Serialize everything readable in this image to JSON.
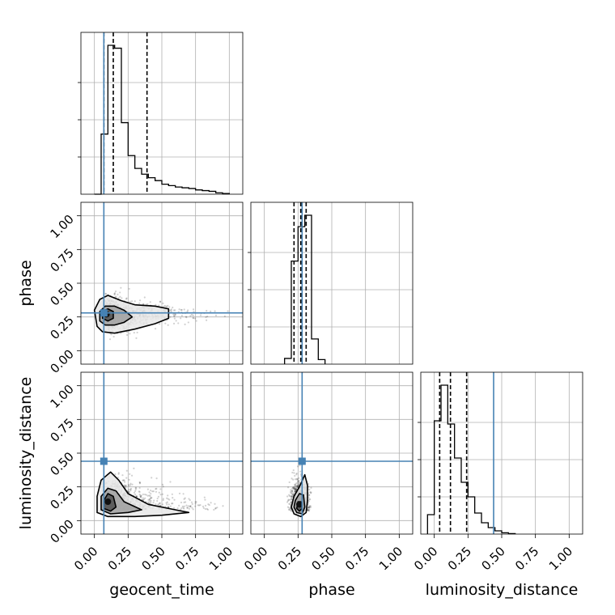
{
  "colors": {
    "truth": "#4682b4",
    "hist": "#000000",
    "points": "#000000",
    "grid": "#b0b0b0"
  },
  "chart_data": {
    "type": "corner",
    "parameters": [
      "geocent_time",
      "phase",
      "luminosity_distance"
    ],
    "axis_labels": {
      "x": [
        "geocent_time",
        "phase",
        "luminosity_distance"
      ],
      "y": [
        "",
        "phase",
        "luminosity_distance"
      ]
    },
    "range": [
      -0.1,
      1.1
    ],
    "ticks": [
      0.0,
      0.25,
      0.5,
      0.75,
      1.0
    ],
    "tick_labels": [
      "0.00",
      "0.25",
      "0.50",
      "0.75",
      "1.00"
    ],
    "grid": true,
    "truths": {
      "geocent_time": 0.07,
      "phase": 0.28,
      "luminosity_distance": 0.44
    },
    "histograms": [
      {
        "parameter": "geocent_time",
        "bin_edges": [
          0.0,
          0.05,
          0.1,
          0.15,
          0.2,
          0.25,
          0.3,
          0.35,
          0.4,
          0.45,
          0.5,
          0.55,
          0.6,
          0.65,
          0.7,
          0.75,
          0.8,
          0.85,
          0.9,
          0.95,
          1.0
        ],
        "counts": [
          0,
          420,
          1040,
          1020,
          500,
          270,
          180,
          140,
          115,
          95,
          70,
          60,
          50,
          45,
          40,
          30,
          25,
          20,
          10,
          5
        ],
        "quantiles": [
          0.07,
          0.14,
          0.39
        ]
      },
      {
        "parameter": "phase",
        "bin_edges": [
          0.15,
          0.2,
          0.25,
          0.3,
          0.35,
          0.4,
          0.45
        ],
        "counts": [
          50,
          900,
          1200,
          1300,
          220,
          40
        ],
        "quantiles": [
          0.22,
          0.27,
          0.31
        ]
      },
      {
        "parameter": "luminosity_distance",
        "bin_edges": [
          -0.05,
          0.0,
          0.05,
          0.1,
          0.15,
          0.2,
          0.25,
          0.3,
          0.35,
          0.4,
          0.45,
          0.5,
          0.55,
          0.6
        ],
        "counts": [
          120,
          700,
          920,
          680,
          470,
          320,
          230,
          130,
          70,
          40,
          20,
          8,
          3
        ],
        "quantiles": [
          0.04,
          0.12,
          0.24
        ]
      }
    ],
    "pairs": [
      {
        "x": "geocent_time",
        "y": "phase",
        "peak": [
          0.09,
          0.27
        ],
        "contours": [
          [
            [
              0.02,
              0.18
            ],
            [
              0.06,
              0.14
            ],
            [
              0.15,
              0.13
            ],
            [
              0.3,
              0.16
            ],
            [
              0.45,
              0.2
            ],
            [
              0.55,
              0.24
            ],
            [
              0.55,
              0.31
            ],
            [
              0.45,
              0.33
            ],
            [
              0.3,
              0.34
            ],
            [
              0.2,
              0.37
            ],
            [
              0.1,
              0.41
            ],
            [
              0.04,
              0.38
            ],
            [
              0.0,
              0.3
            ]
          ],
          [
            [
              0.04,
              0.22
            ],
            [
              0.08,
              0.19
            ],
            [
              0.15,
              0.19
            ],
            [
              0.22,
              0.21
            ],
            [
              0.28,
              0.25
            ],
            [
              0.22,
              0.3
            ],
            [
              0.15,
              0.33
            ],
            [
              0.08,
              0.33
            ],
            [
              0.04,
              0.29
            ]
          ],
          [
            [
              0.06,
              0.24
            ],
            [
              0.1,
              0.22
            ],
            [
              0.14,
              0.24
            ],
            [
              0.14,
              0.29
            ],
            [
              0.1,
              0.31
            ],
            [
              0.06,
              0.29
            ]
          ]
        ]
      },
      {
        "x": "geocent_time",
        "y": "luminosity_distance",
        "peak": [
          0.1,
          0.14
        ],
        "contours": [
          [
            [
              0.02,
              0.06
            ],
            [
              0.1,
              0.03
            ],
            [
              0.3,
              0.03
            ],
            [
              0.5,
              0.04
            ],
            [
              0.7,
              0.06
            ],
            [
              0.6,
              0.08
            ],
            [
              0.4,
              0.12
            ],
            [
              0.25,
              0.2
            ],
            [
              0.18,
              0.3
            ],
            [
              0.12,
              0.36
            ],
            [
              0.05,
              0.3
            ],
            [
              0.02,
              0.18
            ]
          ],
          [
            [
              0.05,
              0.08
            ],
            [
              0.12,
              0.05
            ],
            [
              0.25,
              0.06
            ],
            [
              0.35,
              0.08
            ],
            [
              0.22,
              0.14
            ],
            [
              0.16,
              0.22
            ],
            [
              0.1,
              0.24
            ],
            [
              0.05,
              0.18
            ]
          ],
          [
            [
              0.07,
              0.09
            ],
            [
              0.12,
              0.07
            ],
            [
              0.16,
              0.1
            ],
            [
              0.14,
              0.18
            ],
            [
              0.1,
              0.2
            ],
            [
              0.07,
              0.15
            ]
          ]
        ]
      },
      {
        "x": "phase",
        "y": "luminosity_distance",
        "peak": [
          0.26,
          0.12
        ],
        "contours": [
          [
            [
              0.2,
              0.1
            ],
            [
              0.22,
              0.05
            ],
            [
              0.27,
              0.03
            ],
            [
              0.31,
              0.06
            ],
            [
              0.32,
              0.15
            ],
            [
              0.32,
              0.26
            ],
            [
              0.3,
              0.34
            ],
            [
              0.26,
              0.25
            ],
            [
              0.22,
              0.18
            ]
          ],
          [
            [
              0.22,
              0.1
            ],
            [
              0.24,
              0.06
            ],
            [
              0.28,
              0.05
            ],
            [
              0.3,
              0.1
            ],
            [
              0.29,
              0.19
            ],
            [
              0.26,
              0.2
            ],
            [
              0.23,
              0.15
            ]
          ],
          [
            [
              0.24,
              0.09
            ],
            [
              0.26,
              0.07
            ],
            [
              0.28,
              0.09
            ],
            [
              0.27,
              0.14
            ],
            [
              0.25,
              0.14
            ]
          ]
        ]
      }
    ]
  }
}
